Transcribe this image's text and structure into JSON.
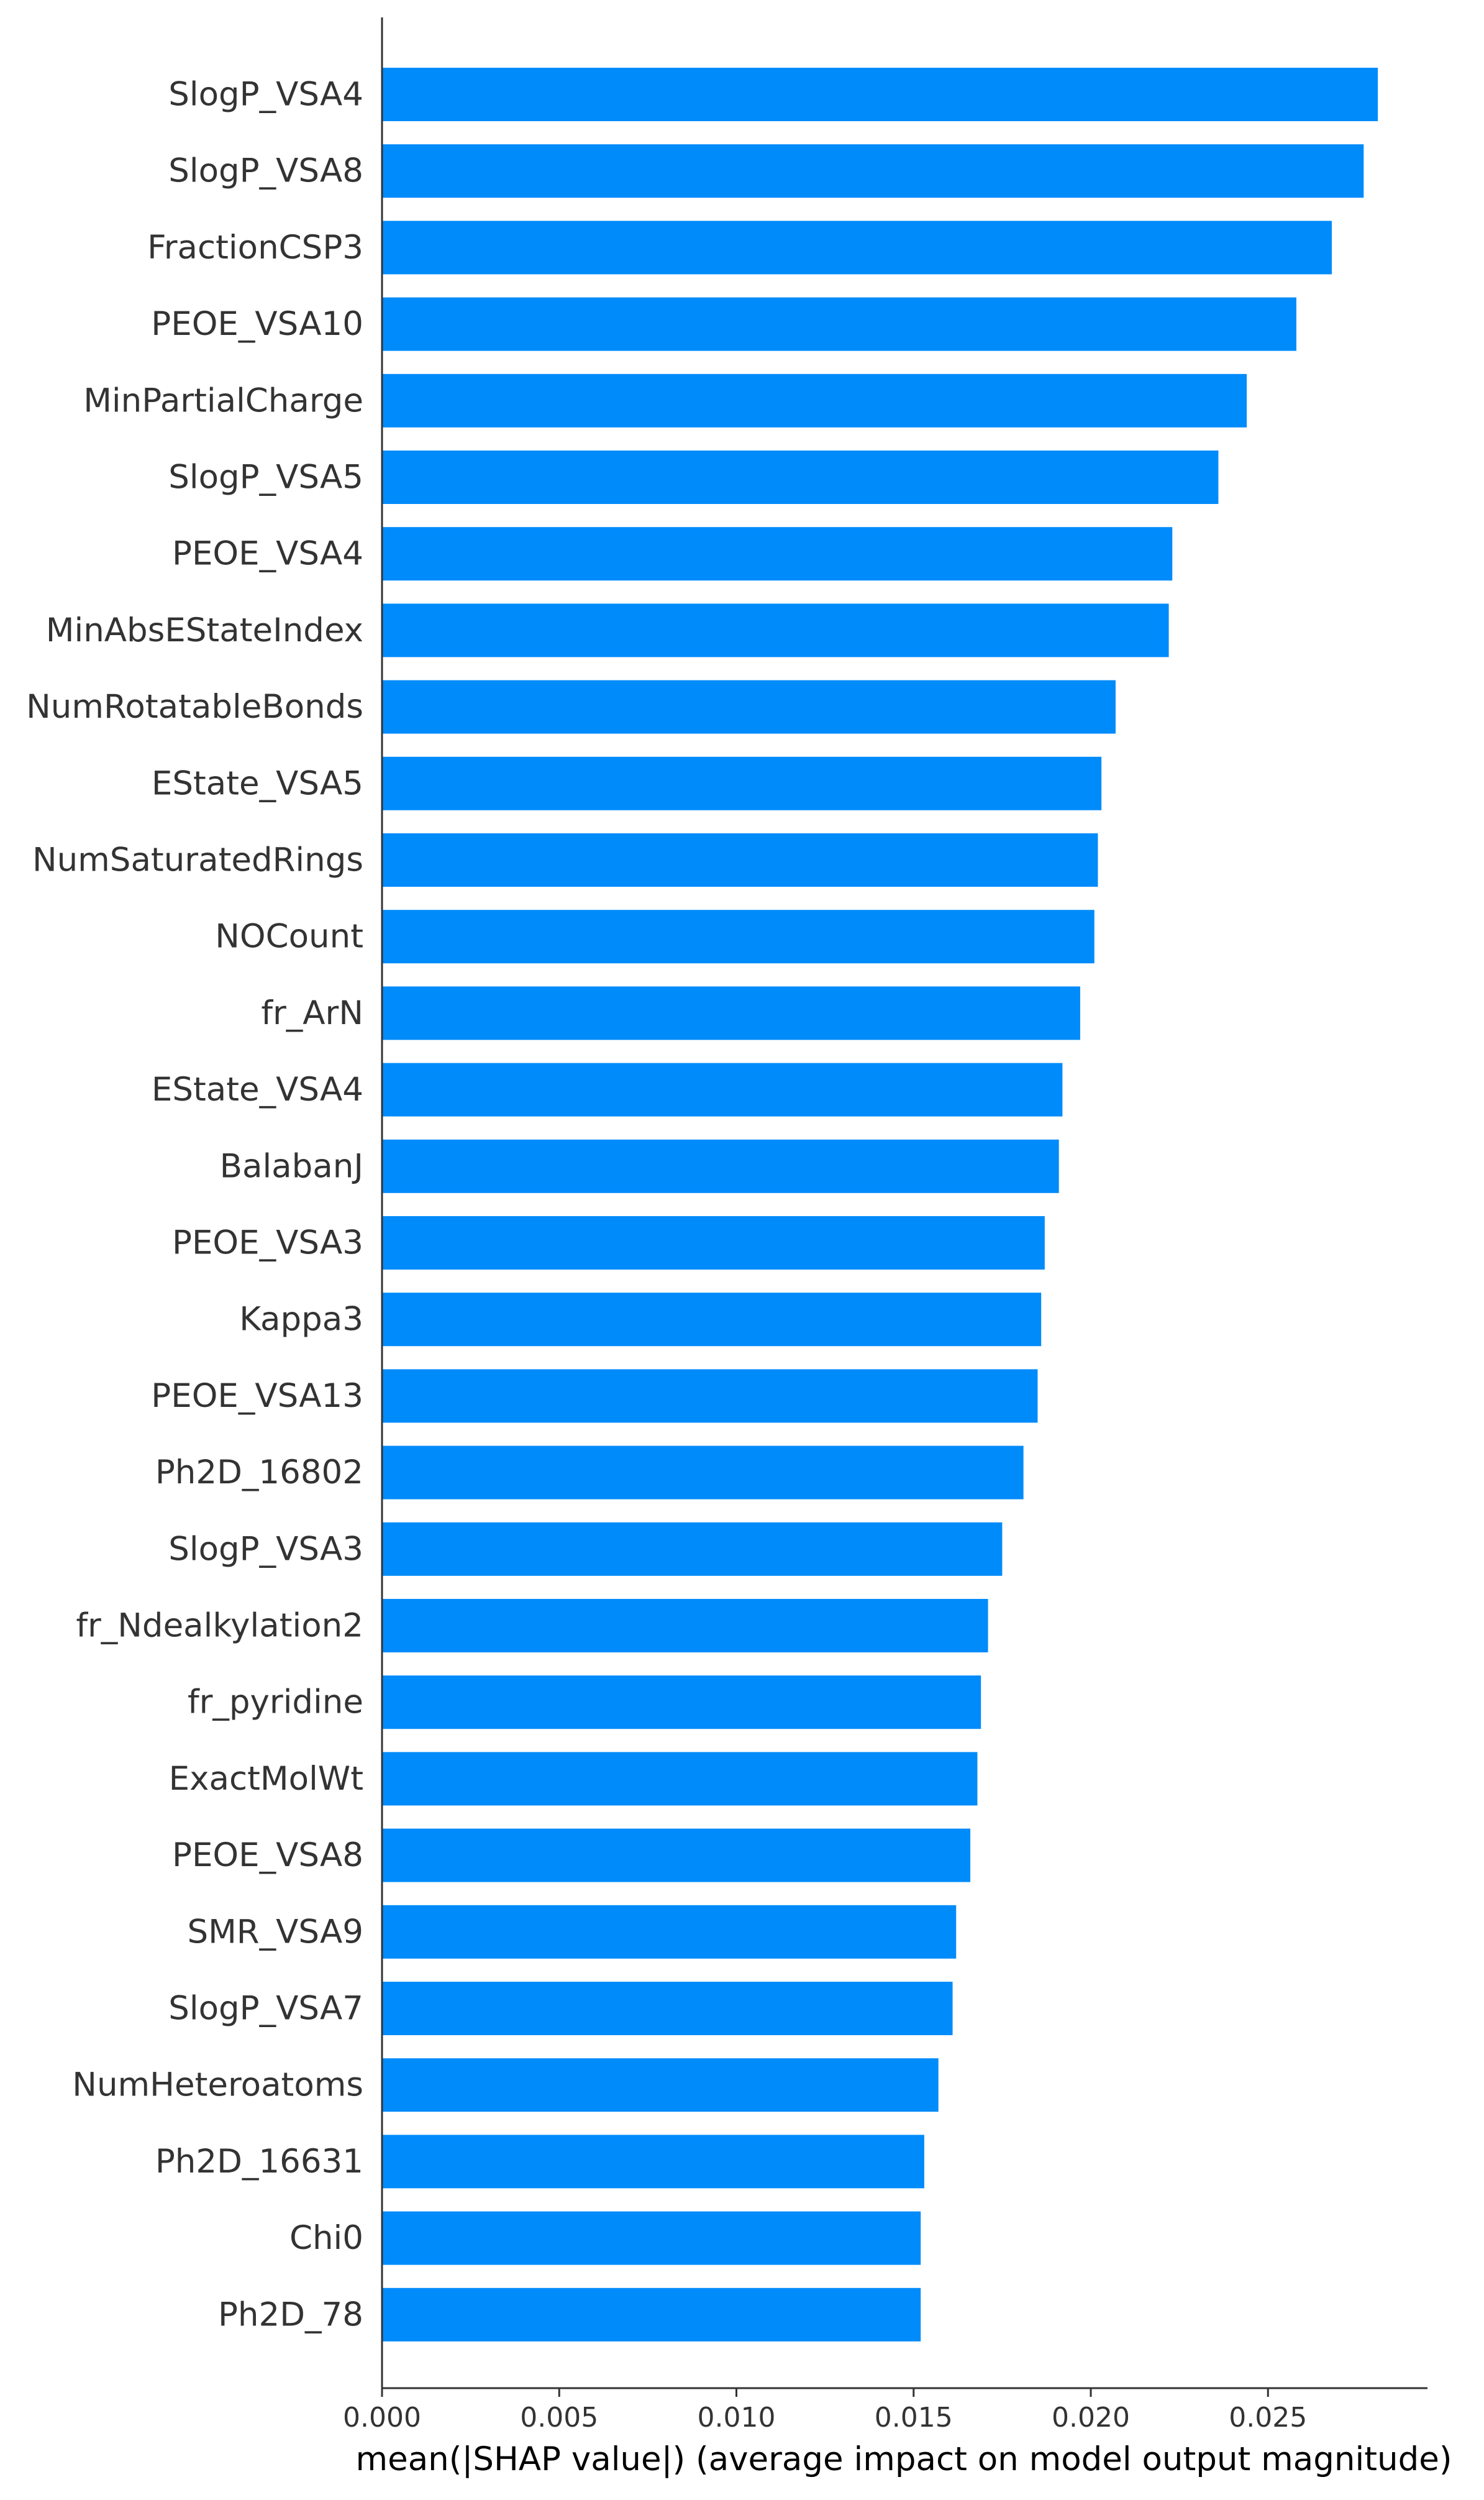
{
  "chart_data": {
    "type": "bar",
    "orientation": "horizontal",
    "title": "",
    "xlabel": "mean(|SHAP value|) (average impact on model output magnitude)",
    "ylabel": "",
    "xlim": [
      0,
      0.0295
    ],
    "grid": false,
    "legend": "none",
    "bar_color": "#008bfb",
    "text_color": "#333333",
    "axis_color": "#333333",
    "x_ticks": [
      {
        "value": 0.0,
        "label": "0.000"
      },
      {
        "value": 0.005,
        "label": "0.005"
      },
      {
        "value": 0.01,
        "label": "0.010"
      },
      {
        "value": 0.015,
        "label": "0.015"
      },
      {
        "value": 0.02,
        "label": "0.020"
      },
      {
        "value": 0.025,
        "label": "0.025"
      }
    ],
    "categories": [
      "SlogP_VSA4",
      "SlogP_VSA8",
      "FractionCSP3",
      "PEOE_VSA10",
      "MinPartialCharge",
      "SlogP_VSA5",
      "PEOE_VSA4",
      "MinAbsEStateIndex",
      "NumRotatableBonds",
      "EState_VSA5",
      "NumSaturatedRings",
      "NOCount",
      "fr_ArN",
      "EState_VSA4",
      "BalabanJ",
      "PEOE_VSA3",
      "Kappa3",
      "PEOE_VSA13",
      "Ph2D_16802",
      "SlogP_VSA3",
      "fr_Ndealkylation2",
      "fr_pyridine",
      "ExactMolWt",
      "PEOE_VSA8",
      "SMR_VSA9",
      "SlogP_VSA7",
      "NumHeteroatoms",
      "Ph2D_16631",
      "Chi0",
      "Ph2D_78"
    ],
    "values": [
      0.0281,
      0.0277,
      0.0268,
      0.0258,
      0.0244,
      0.0236,
      0.0223,
      0.0222,
      0.0207,
      0.0203,
      0.0202,
      0.0201,
      0.0197,
      0.0192,
      0.0191,
      0.0187,
      0.0186,
      0.0185,
      0.0181,
      0.0175,
      0.0171,
      0.0169,
      0.0168,
      0.0166,
      0.0162,
      0.0161,
      0.0157,
      0.0153,
      0.0152,
      0.0152
    ]
  }
}
